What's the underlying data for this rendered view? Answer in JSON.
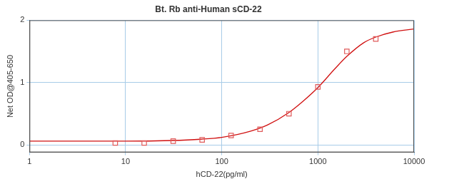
{
  "chart_data": {
    "type": "scatter",
    "title": "Bt. Rb anti-Human sCD-22",
    "x_label": "hCD-22(pg/ml)",
    "y_label": "Net OD@405-650",
    "log": "x",
    "grid": true,
    "xlim": [
      1,
      10000
    ],
    "xticks": [
      1,
      10,
      100,
      1000,
      10000
    ],
    "ylim": [
      -0.12,
      2
    ],
    "yticks": [
      0,
      1,
      2
    ],
    "series": [
      {
        "type": "scatter",
        "marker": "square",
        "color": "#e05a5a",
        "x": [
          7.8,
          15.6,
          31.25,
          62.5,
          125,
          250,
          500,
          1000,
          2000,
          4000
        ],
        "values": [
          0.03,
          0.03,
          0.06,
          0.08,
          0.15,
          0.25,
          0.5,
          0.93,
          1.5,
          1.7
        ]
      },
      {
        "type": "line",
        "color": "#d01010",
        "x": [
          1,
          3,
          10,
          30,
          60,
          100,
          200,
          300,
          500,
          700,
          1000,
          1500,
          2000,
          3000,
          4000,
          6000,
          10000
        ],
        "values": [
          0.06,
          0.06,
          0.06,
          0.07,
          0.09,
          0.12,
          0.22,
          0.32,
          0.52,
          0.7,
          0.92,
          1.22,
          1.42,
          1.64,
          1.73,
          1.81,
          1.86
        ]
      }
    ]
  }
}
